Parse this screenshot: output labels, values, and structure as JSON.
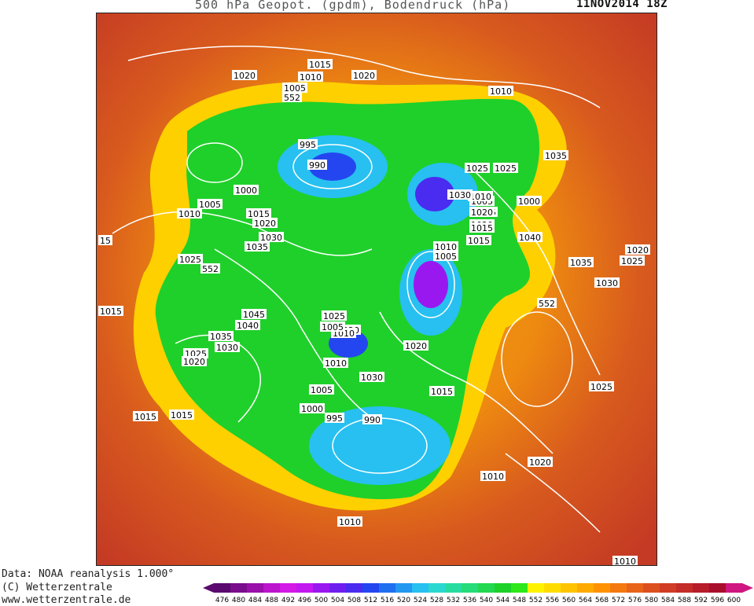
{
  "header": {
    "title": "500 hPa Geopot. (gpdm), Bodendruck (hPa)",
    "datetime": "11NOV2014 18Z"
  },
  "footer": {
    "data_source": "Data: NOAA reanalysis 1.000°",
    "copyright": "(C) Wetterzentrale",
    "website": "www.wetterzentrale.de"
  },
  "legend": {
    "levels": [
      "476",
      "480",
      "484",
      "488",
      "492",
      "496",
      "500",
      "504",
      "508",
      "512",
      "516",
      "520",
      "524",
      "528",
      "532",
      "536",
      "540",
      "544",
      "548",
      "552",
      "556",
      "560",
      "564",
      "568",
      "572",
      "576",
      "580",
      "584",
      "588",
      "592",
      "596",
      "600"
    ],
    "colors": [
      "#5a0a6e",
      "#7a0d8c",
      "#9a10aa",
      "#bb14cc",
      "#d41ae6",
      "#c418f0",
      "#9a18f0",
      "#6f1ef0",
      "#4a2cf0",
      "#2446f0",
      "#1f6ff0",
      "#2398f0",
      "#27c0f0",
      "#2ad8d0",
      "#28dca0",
      "#26dc78",
      "#22d850",
      "#1ed02a",
      "#2ee81a",
      "#fff200",
      "#ffdc00",
      "#ffc400",
      "#ffaa00",
      "#ff9200",
      "#f47a10",
      "#e8641a",
      "#dc5020",
      "#d03c24",
      "#c42c28",
      "#b61c2a",
      "#a80e2c",
      "#d01680"
    ]
  },
  "map": {
    "isobar_labels": [
      {
        "text": "1015"
      },
      {
        "text": "1010"
      },
      {
        "text": "1020"
      },
      {
        "text": "1005"
      },
      {
        "text": "1020"
      },
      {
        "text": "1010"
      },
      {
        "text": "995"
      },
      {
        "text": "990"
      },
      {
        "text": "1000"
      },
      {
        "text": "1005"
      },
      {
        "text": "1010"
      },
      {
        "text": "1015"
      },
      {
        "text": "1020"
      },
      {
        "text": "1030"
      },
      {
        "text": "1035"
      },
      {
        "text": "15"
      },
      {
        "text": "1025"
      },
      {
        "text": "1000"
      },
      {
        "text": "1005"
      },
      {
        "text": "1010"
      },
      {
        "text": "1025"
      },
      {
        "text": "1020"
      },
      {
        "text": "1025"
      },
      {
        "text": "1030"
      },
      {
        "text": "1025"
      },
      {
        "text": "1020"
      },
      {
        "text": "1015"
      },
      {
        "text": "1035"
      },
      {
        "text": "1040"
      },
      {
        "text": "1010"
      },
      {
        "text": "1005"
      },
      {
        "text": "1015"
      },
      {
        "text": "1035"
      },
      {
        "text": "1020"
      },
      {
        "text": "1025"
      },
      {
        "text": "1030"
      },
      {
        "text": "1015"
      },
      {
        "text": "1045"
      },
      {
        "text": "1040"
      },
      {
        "text": "1025"
      },
      {
        "text": "1020"
      },
      {
        "text": "1035"
      },
      {
        "text": "1030"
      },
      {
        "text": "1025"
      },
      {
        "text": "1020"
      },
      {
        "text": "1010"
      },
      {
        "text": "1030"
      },
      {
        "text": "1005"
      },
      {
        "text": "1000"
      },
      {
        "text": "995"
      },
      {
        "text": "990"
      },
      {
        "text": "1015"
      },
      {
        "text": "1015"
      },
      {
        "text": "1015"
      },
      {
        "text": "1025"
      },
      {
        "text": "1020"
      },
      {
        "text": "1010"
      },
      {
        "text": "1010"
      },
      {
        "text": "1010"
      },
      {
        "text": "1020"
      },
      {
        "text": "1010"
      },
      {
        "text": "1005"
      },
      {
        "text": "552"
      },
      {
        "text": "552"
      },
      {
        "text": "552"
      }
    ]
  }
}
